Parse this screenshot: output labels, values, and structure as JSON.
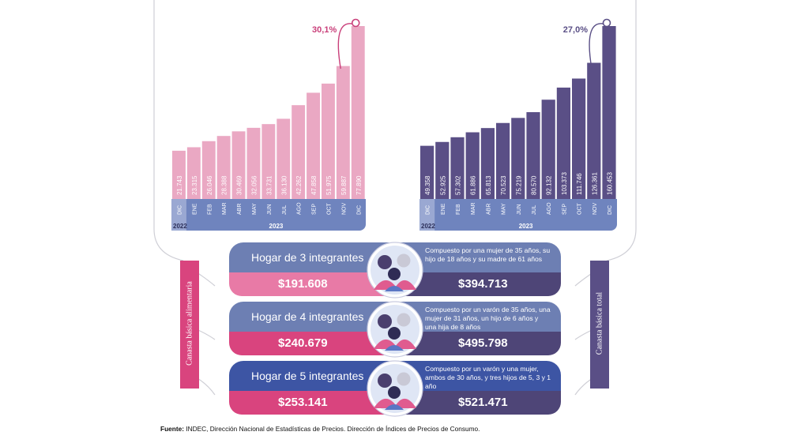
{
  "colors": {
    "pink": "#e9a9c4",
    "pink_dark": "#d9447e",
    "purple": "#5a4f86",
    "blue_band": "#6b83bd",
    "card_blue": "#6d7fb3",
    "card_blue_dark": "#3d55a4",
    "purple_price": "#4e4577"
  },
  "chart_data": [
    {
      "type": "bar",
      "name": "Canasta básica alimentaria",
      "categories": [
        "DIC",
        "ENE",
        "FEB",
        "MAR",
        "ABR",
        "MAY",
        "JUN",
        "JUL",
        "AGO",
        "SEP",
        "OCT",
        "NOV",
        "DIC"
      ],
      "values": [
        21743,
        23315,
        26046,
        28388,
        30469,
        32056,
        33731,
        36130,
        42262,
        47858,
        51975,
        59887,
        77890
      ],
      "value_labels": [
        "21.743",
        "23.315",
        "26.046",
        "28.388",
        "30.469",
        "32.056",
        "33.731",
        "36.130",
        "42.262",
        "47.858",
        "51.975",
        "59.887",
        "77.890"
      ],
      "year_labels": {
        "first": "2022",
        "rest": "2023"
      },
      "annotation": "30,1%"
    },
    {
      "type": "bar",
      "name": "Canasta básica total",
      "categories": [
        "DIC",
        "ENE",
        "FEB",
        "MAR",
        "ABR",
        "MAY",
        "JUN",
        "JUL",
        "AGO",
        "SEP",
        "OCT",
        "NOV",
        "DIC"
      ],
      "values": [
        49358,
        52925,
        57302,
        61886,
        65813,
        70523,
        75219,
        80570,
        92132,
        103373,
        111746,
        126361,
        160453
      ],
      "value_labels": [
        "49.358",
        "52.925",
        "57.302",
        "61.886",
        "65.813",
        "70.523",
        "75.219",
        "80.570",
        "92.132",
        "103.373",
        "111.746",
        "126.361",
        "160.453"
      ],
      "year_labels": {
        "first": "2022",
        "rest": "2023"
      },
      "annotation": "27,0%"
    }
  ],
  "side_labels": {
    "left": "Canasta básica alimentaria",
    "right": "Canasta básica total"
  },
  "households": [
    {
      "title": "Hogar de 3 integrantes",
      "description": "Compuesto por una mujer de 35 años, su hijo de 18 años y su madre de 61 años",
      "cba": "$191.608",
      "cbt": "$394.713"
    },
    {
      "title": "Hogar de 4 integrantes",
      "description": "Compuesto por un varón de 35 años, una mujer de 31 años, un hijo de 6 años y una hija de 8 años",
      "cba": "$240.679",
      "cbt": "$495.798"
    },
    {
      "title": "Hogar de 5 integrantes",
      "description": "Compuesto por un varón y una mujer, ambos de 30 años, y tres hijos de 5, 3 y 1 año",
      "cba": "$253.141",
      "cbt": "$521.471"
    }
  ],
  "source": {
    "label": "Fuente:",
    "text": "INDEC, Dirección Nacional de Estadísticas de Precios. Dirección de Índices de Precios de Consumo."
  }
}
